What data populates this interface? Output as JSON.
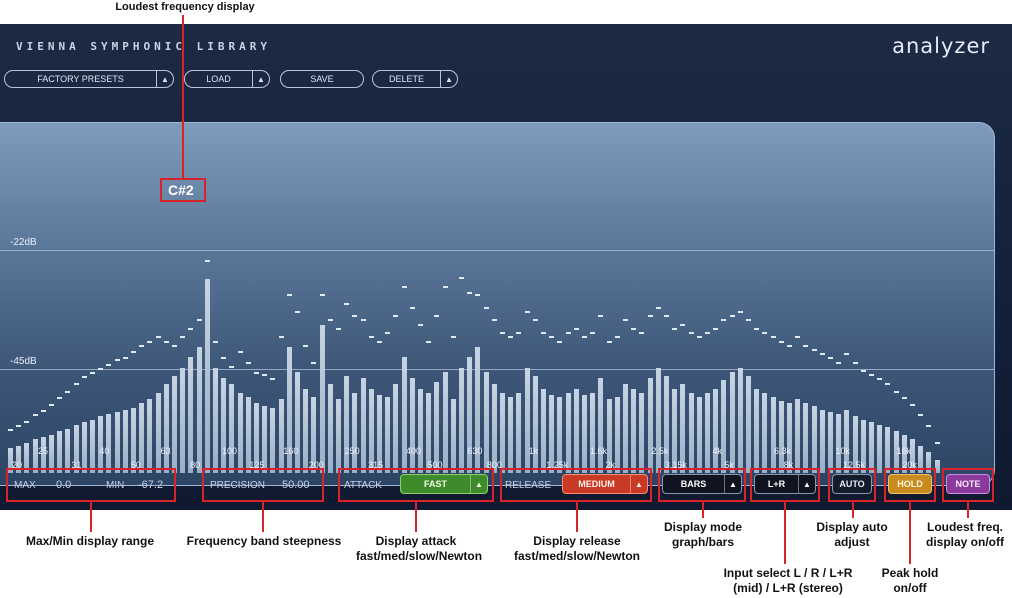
{
  "top_annotation": "Loudest frequency display",
  "plugin": {
    "brand": "VIENNA SYMPHONIC LIBRARY",
    "title": "analyzer",
    "toolbar": {
      "factory_presets": "FACTORY PRESETS",
      "load": "LOAD",
      "save": "SAVE",
      "delete": "DELETE"
    },
    "display": {
      "loudest_note": "C#2",
      "db_labels": [
        "-22dB",
        "-45dB"
      ],
      "freq_upper": [
        "25",
        "40",
        "63",
        "100",
        "160",
        "250",
        "400",
        "630",
        "1k",
        "1.6k",
        "2.5k",
        "4k",
        "6.3k",
        "10k",
        "16k"
      ],
      "freq_lower": [
        "20",
        "31",
        "50",
        "80",
        "125",
        "200",
        "315",
        "500",
        "800",
        "1.25k",
        "2k",
        "3.15k",
        "5k",
        "8k",
        "12.5k",
        "20k"
      ]
    },
    "controls": {
      "max_label": "MAX",
      "max_value": "0.0",
      "min_label": "MIN",
      "min_value": "-67.2",
      "precision_label": "PRECISION",
      "precision_value": "50.00",
      "attack_label": "ATTACK",
      "attack_value": "FAST",
      "release_label": "RELEASE",
      "release_value": "MEDIUM",
      "mode_value": "BARS",
      "input_value": "L+R",
      "auto_label": "AUTO",
      "hold_label": "HOLD",
      "note_label": "NOTE"
    },
    "colors": {
      "attack": "#3f8a2a",
      "release": "#c93a26",
      "hold": "#c98a1e",
      "note": "#8a3a9a"
    }
  },
  "annotations": {
    "range": "Max/Min display range",
    "steepness": "Frequency band steepness",
    "attack": "Display attack fast/med/slow/Newton",
    "release": "Display release fast/med/slow/Newton",
    "mode": "Display mode graph/bars",
    "input": "Input select L / R / L+R (mid) / L+R (stereo)",
    "auto": "Display auto adjust",
    "hold": "Peak hold on/off",
    "note": "Loudest freq. display on/off"
  },
  "spectrum": {
    "bars": [
      0.12,
      0.13,
      0.14,
      0.16,
      0.17,
      0.18,
      0.2,
      0.21,
      0.23,
      0.24,
      0.25,
      0.27,
      0.28,
      0.29,
      0.3,
      0.31,
      0.33,
      0.35,
      0.38,
      0.42,
      0.46,
      0.5,
      0.55,
      0.6,
      0.92,
      0.5,
      0.45,
      0.42,
      0.38,
      0.36,
      0.33,
      0.32,
      0.31,
      0.35,
      0.6,
      0.48,
      0.4,
      0.36,
      0.7,
      0.42,
      0.35,
      0.46,
      0.38,
      0.45,
      0.4,
      0.37,
      0.36,
      0.42,
      0.55,
      0.45,
      0.4,
      0.38,
      0.43,
      0.48,
      0.35,
      0.5,
      0.55,
      0.6,
      0.48,
      0.42,
      0.38,
      0.36,
      0.38,
      0.5,
      0.46,
      0.4,
      0.37,
      0.36,
      0.38,
      0.4,
      0.37,
      0.38,
      0.45,
      0.35,
      0.36,
      0.42,
      0.4,
      0.38,
      0.45,
      0.5,
      0.46,
      0.4,
      0.42,
      0.38,
      0.36,
      0.38,
      0.4,
      0.44,
      0.48,
      0.5,
      0.46,
      0.4,
      0.38,
      0.36,
      0.34,
      0.33,
      0.35,
      0.33,
      0.32,
      0.3,
      0.29,
      0.28,
      0.3,
      0.27,
      0.25,
      0.24,
      0.23,
      0.22,
      0.2,
      0.18,
      0.16,
      0.13,
      0.1,
      0.06
    ],
    "peaks": [
      0.18,
      0.2,
      0.22,
      0.25,
      0.27,
      0.3,
      0.33,
      0.36,
      0.4,
      0.43,
      0.45,
      0.47,
      0.49,
      0.51,
      0.52,
      0.55,
      0.58,
      0.6,
      0.62,
      0.6,
      0.58,
      0.62,
      0.66,
      0.7,
      0.98,
      0.6,
      0.52,
      0.48,
      0.55,
      0.5,
      0.45,
      0.44,
      0.42,
      0.62,
      0.82,
      0.74,
      0.58,
      0.5,
      0.82,
      0.7,
      0.66,
      0.78,
      0.72,
      0.7,
      0.62,
      0.6,
      0.64,
      0.72,
      0.86,
      0.76,
      0.68,
      0.6,
      0.72,
      0.86,
      0.62,
      0.9,
      0.83,
      0.82,
      0.76,
      0.7,
      0.64,
      0.62,
      0.64,
      0.74,
      0.7,
      0.64,
      0.62,
      0.6,
      0.64,
      0.66,
      0.62,
      0.64,
      0.72,
      0.6,
      0.62,
      0.7,
      0.66,
      0.64,
      0.72,
      0.76,
      0.72,
      0.66,
      0.68,
      0.64,
      0.62,
      0.64,
      0.66,
      0.7,
      0.72,
      0.74,
      0.7,
      0.66,
      0.64,
      0.62,
      0.6,
      0.58,
      0.62,
      0.58,
      0.56,
      0.54,
      0.52,
      0.5,
      0.54,
      0.5,
      0.46,
      0.44,
      0.42,
      0.4,
      0.36,
      0.33,
      0.3,
      0.25,
      0.2,
      0.12
    ]
  }
}
